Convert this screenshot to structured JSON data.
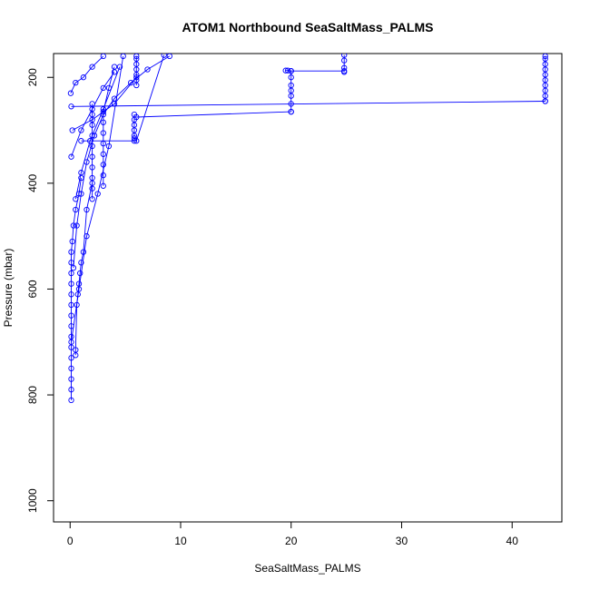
{
  "chart_data": {
    "type": "line",
    "title": "ATOM1 Northbound SeaSaltMass_PALMS",
    "xlabel": "SeaSaltMass_PALMS",
    "ylabel": "Pressure (mbar)",
    "xlim": [
      -1.5,
      44.5
    ],
    "ylim": [
      1040,
      155
    ],
    "y_reversed": true,
    "x_ticks": [
      0,
      10,
      20,
      30,
      40
    ],
    "y_ticks": [
      200,
      400,
      600,
      800,
      1000
    ],
    "grid": false,
    "legend": "none",
    "marker": "open-circle",
    "color": "#0000ff",
    "series": [
      {
        "x": [
          0.1,
          0.1,
          0.1,
          0.1,
          0.1,
          0.1,
          0.1,
          0.1,
          0.1,
          0.1,
          0.1,
          0.1,
          0.1,
          0.1,
          0.1,
          0.2,
          0.3,
          0.5,
          0.8,
          1.0
        ],
        "y": [
          810,
          790,
          770,
          750,
          730,
          710,
          690,
          670,
          650,
          630,
          610,
          590,
          570,
          550,
          530,
          510,
          480,
          450,
          420,
          390
        ]
      },
      {
        "x": [
          0.5,
          0.5,
          0.6,
          0.7,
          0.8,
          0.9,
          1.0,
          1.2,
          1.5,
          2.0
        ],
        "y": [
          725,
          715,
          630,
          610,
          590,
          570,
          550,
          530,
          450,
          400
        ]
      },
      {
        "x": [
          2.0,
          2.0,
          2.0,
          2.0,
          2.0,
          2.0,
          2.0,
          2.0,
          2.0,
          2.0
        ],
        "y": [
          430,
          410,
          390,
          370,
          350,
          330,
          310,
          290,
          270,
          250
        ]
      },
      {
        "x": [
          3.0,
          3.0,
          3.0,
          3.0,
          3.0,
          3.0,
          3.0,
          3.0,
          3.5,
          4.0
        ],
        "y": [
          405,
          385,
          365,
          345,
          325,
          305,
          285,
          265,
          220,
          180
        ]
      },
      {
        "x": [
          5.8,
          5.8,
          5.8,
          5.8,
          5.8,
          5.8,
          5.8
        ],
        "y": [
          320,
          315,
          310,
          300,
          290,
          280,
          270
        ]
      },
      {
        "x": [
          6.0,
          6.0,
          6.0,
          6.0,
          6.0,
          6.0,
          6.0
        ],
        "y": [
          215,
          205,
          195,
          185,
          175,
          165,
          160
        ]
      },
      {
        "x": [
          19.5,
          19.7,
          20.0,
          20.0,
          20.0,
          20.0,
          20.0,
          20.0,
          20.0
        ],
        "y": [
          187,
          187,
          188,
          200,
          215,
          225,
          235,
          250,
          265
        ]
      },
      {
        "x": [
          24.8,
          24.8,
          24.8,
          24.8
        ],
        "y": [
          190,
          182,
          168,
          158
        ]
      },
      {
        "x": [
          43.0,
          43.0,
          43.0,
          43.0,
          43.0,
          43.0,
          43.0,
          43.0,
          43.0,
          43.0
        ],
        "y": [
          245,
          235,
          225,
          215,
          205,
          195,
          185,
          175,
          165,
          160
        ]
      },
      {
        "x": [
          0.1,
          43.0
        ],
        "y": [
          255,
          245
        ]
      },
      {
        "x": [
          6.0,
          20.0
        ],
        "y": [
          275,
          265
        ]
      },
      {
        "x": [
          20.0,
          24.8
        ],
        "y": [
          188,
          188
        ]
      },
      {
        "x": [
          1.0,
          6.0,
          8.5
        ],
        "y": [
          320,
          320,
          158
        ]
      },
      {
        "x": [
          0.2,
          2.0,
          4.0,
          6.0
        ],
        "y": [
          300,
          280,
          250,
          200
        ]
      },
      {
        "x": [
          0.5,
          1.0,
          1.8,
          3.0,
          4.5
        ],
        "y": [
          430,
          380,
          320,
          260,
          180
        ]
      },
      {
        "x": [
          0.1,
          0.8,
          1.5,
          2.5,
          3.5,
          4.8
        ],
        "y": [
          700,
          600,
          500,
          420,
          330,
          160
        ]
      },
      {
        "x": [
          0.3,
          0.6,
          1.0,
          1.5,
          2.2,
          3.0,
          4.0,
          5.5,
          7.0,
          9.0
        ],
        "y": [
          560,
          480,
          420,
          360,
          310,
          270,
          240,
          210,
          185,
          160
        ]
      },
      {
        "x": [
          0.05,
          0.5,
          1.2,
          2.0,
          3.0
        ],
        "y": [
          230,
          210,
          200,
          180,
          160
        ]
      },
      {
        "x": [
          0.1,
          1.0,
          2.0,
          3.0,
          4.0
        ],
        "y": [
          350,
          300,
          260,
          220,
          190
        ]
      }
    ]
  }
}
